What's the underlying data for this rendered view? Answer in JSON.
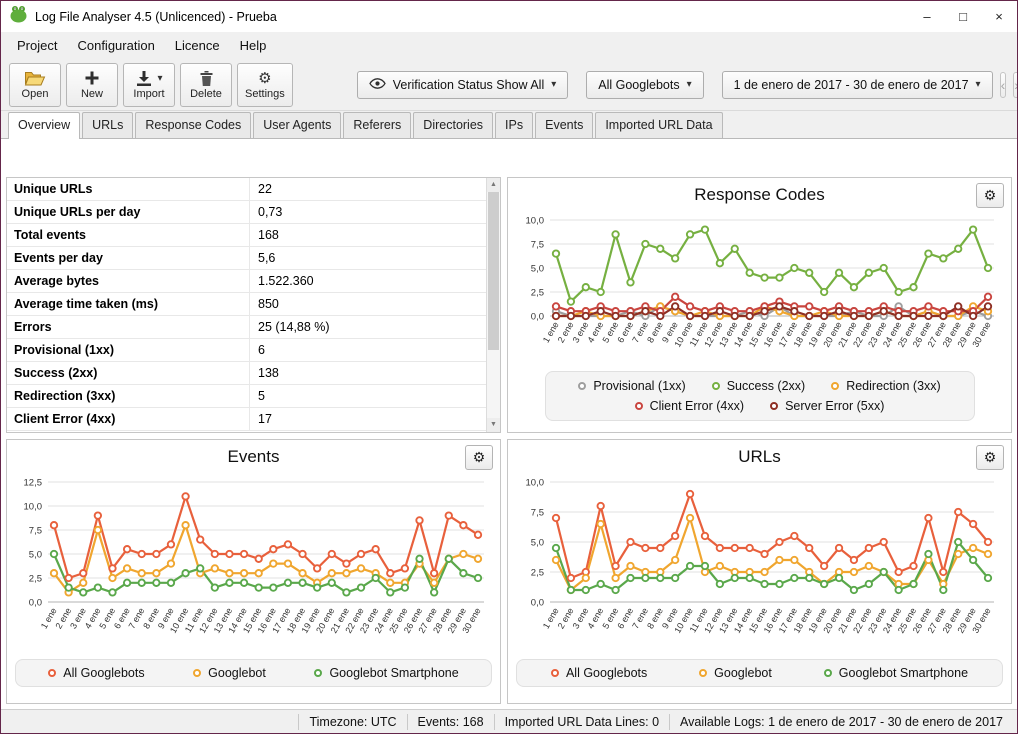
{
  "window": {
    "title": "Log File Analyser 4.5 (Unlicenced) - Prueba",
    "controls": {
      "minimize": "–",
      "maximize": "□",
      "close": "×"
    }
  },
  "icons": {
    "gear": "⚙",
    "caret_down": "▾",
    "prev": "‹",
    "next": "›",
    "scroll_up": "▲",
    "scroll_down": "▼"
  },
  "menu": {
    "items": [
      "Project",
      "Configuration",
      "Licence",
      "Help"
    ]
  },
  "toolbar": {
    "buttons": [
      {
        "label": "Open",
        "icon": "open-folder-icon"
      },
      {
        "label": "New",
        "icon": "new-plus-icon"
      },
      {
        "label": "Import",
        "icon": "import-icon",
        "has_caret": true
      },
      {
        "label": "Delete",
        "icon": "delete-trash-icon"
      },
      {
        "label": "Settings",
        "icon": "settings-gear-icon"
      }
    ],
    "verification_dropdown": {
      "label": "Verification Status Show All"
    },
    "bots_dropdown": {
      "label": "All Googlebots"
    },
    "date_dropdown": {
      "label": "1 de enero de 2017 - 30 de enero de 2017"
    }
  },
  "tabs": {
    "items": [
      "Overview",
      "URLs",
      "Response Codes",
      "User Agents",
      "Referers",
      "Directories",
      "IPs",
      "Events",
      "Imported URL Data"
    ],
    "selected": "Overview"
  },
  "stats_table": {
    "rows": [
      [
        "Unique URLs",
        "22"
      ],
      [
        "Unique URLs per day",
        "0,73"
      ],
      [
        "Total events",
        "168"
      ],
      [
        "Events per day",
        "5,6"
      ],
      [
        "Average bytes",
        "1.522.360"
      ],
      [
        "Average time taken (ms)",
        "850"
      ],
      [
        "Errors",
        "25 (14,88 %)"
      ],
      [
        "Provisional (1xx)",
        "6"
      ],
      [
        "Success (2xx)",
        "138"
      ],
      [
        "Redirection (3xx)",
        "5"
      ],
      [
        "Client Error (4xx)",
        "17"
      ]
    ]
  },
  "status_bar": {
    "items": [
      "Timezone: UTC",
      "Events: 168",
      "Imported URL Data Lines: 0",
      "Available Logs: 1 de enero de 2017 - 30 de enero de 2017"
    ]
  },
  "chart_data": [
    {
      "type": "line",
      "name": "response-codes",
      "title": "Response Codes",
      "ylim": [
        0,
        10
      ],
      "yticks": [
        0,
        2.5,
        5,
        7.5,
        10
      ],
      "categories": [
        "1 ene",
        "2 ene",
        "3 ene",
        "4 ene",
        "5 ene",
        "6 ene",
        "7 ene",
        "8 ene",
        "9 ene",
        "10 ene",
        "11 ene",
        "12 ene",
        "13 ene",
        "14 ene",
        "15 ene",
        "16 ene",
        "17 ene",
        "18 ene",
        "19 ene",
        "20 ene",
        "21 ene",
        "22 ene",
        "23 ene",
        "24 ene",
        "25 ene",
        "26 ene",
        "27 ene",
        "28 ene",
        "29 ene",
        "30 ene"
      ],
      "series": [
        {
          "name": "Provisional (1xx)",
          "color": "#9e9e9e",
          "values": [
            0.5,
            0,
            0,
            0,
            0,
            0.5,
            0,
            1,
            0.5,
            0,
            0,
            0,
            0,
            0.5,
            0,
            1,
            0,
            0,
            0,
            0,
            0.5,
            0,
            0,
            1,
            0,
            0.5,
            0,
            0,
            0.5,
            0
          ]
        },
        {
          "name": "Success (2xx)",
          "color": "#76b041",
          "values": [
            6.5,
            1.5,
            3,
            2.5,
            8.5,
            3.5,
            7.5,
            7,
            6,
            8.5,
            9,
            5.5,
            7,
            4.5,
            4,
            4,
            5,
            4.5,
            2.5,
            4.5,
            3,
            4.5,
            5,
            2.5,
            3,
            6.5,
            6,
            7,
            9,
            5
          ]
        },
        {
          "name": "Redirection (3xx)",
          "color": "#f0a62f",
          "values": [
            0,
            0,
            0.5,
            0,
            0,
            0,
            0.5,
            1,
            0.5,
            0,
            0.5,
            0,
            0,
            0,
            1,
            0.5,
            0,
            0,
            0.5,
            0,
            0,
            0,
            0.5,
            0,
            0,
            0.5,
            0,
            0,
            1,
            0.5
          ]
        },
        {
          "name": "Client Error (4xx)",
          "color": "#c9453f",
          "values": [
            1,
            0.5,
            0.5,
            1,
            0.5,
            0.5,
            1,
            0.5,
            2,
            1,
            0.5,
            1,
            0.5,
            0.5,
            1,
            1.5,
            1,
            1,
            0.5,
            1,
            0.5,
            0.5,
            1,
            0.5,
            0.5,
            1,
            0.5,
            0.5,
            0.5,
            2
          ]
        },
        {
          "name": "Server Error (5xx)",
          "color": "#8e2f24",
          "values": [
            0,
            0,
            0,
            0.5,
            0,
            0,
            0.5,
            0,
            1,
            0,
            0,
            0.5,
            0,
            0,
            0.5,
            1,
            0.5,
            0,
            0,
            0.5,
            0,
            0,
            0.5,
            0,
            0,
            0,
            0,
            1,
            0,
            1
          ]
        }
      ]
    },
    {
      "type": "line",
      "name": "events",
      "title": "Events",
      "ylim": [
        0,
        12.5
      ],
      "yticks": [
        0,
        2.5,
        5,
        7.5,
        10,
        12.5
      ],
      "categories": [
        "1 ene",
        "2 ene",
        "3 ene",
        "4 ene",
        "5 ene",
        "6 ene",
        "7 ene",
        "8 ene",
        "9 ene",
        "10 ene",
        "11 ene",
        "12 ene",
        "13 ene",
        "14 ene",
        "15 ene",
        "16 ene",
        "17 ene",
        "18 ene",
        "19 ene",
        "20 ene",
        "21 ene",
        "22 ene",
        "23 ene",
        "24 ene",
        "25 ene",
        "26 ene",
        "27 ene",
        "28 ene",
        "29 ene",
        "30 ene"
      ],
      "series": [
        {
          "name": "All Googlebots",
          "color": "#e8603c",
          "values": [
            8,
            2.5,
            3,
            9,
            3.5,
            5.5,
            5,
            5,
            6,
            11,
            6.5,
            5,
            5,
            5,
            4.5,
            5.5,
            6,
            5,
            3.5,
            5,
            4,
            5,
            5.5,
            3,
            3.5,
            8.5,
            3,
            9,
            8,
            7
          ]
        },
        {
          "name": "Googlebot",
          "color": "#f0a62f",
          "values": [
            3,
            1,
            2,
            7.5,
            2.5,
            3.5,
            3,
            3,
            4,
            8,
            3,
            3.5,
            3,
            3,
            3,
            4,
            4,
            3,
            2,
            3,
            3,
            3.5,
            3,
            2,
            2,
            4,
            2,
            4.5,
            5,
            4.5
          ]
        },
        {
          "name": "Googlebot Smartphone",
          "color": "#5aa84b",
          "values": [
            5,
            1.5,
            1,
            1.5,
            1,
            2,
            2,
            2,
            2,
            3,
            3.5,
            1.5,
            2,
            2,
            1.5,
            1.5,
            2,
            2,
            1.5,
            2,
            1,
            1.5,
            2.5,
            1,
            1.5,
            4.5,
            1,
            4.5,
            3,
            2.5
          ]
        }
      ]
    },
    {
      "type": "line",
      "name": "urls",
      "title": "URLs",
      "ylim": [
        0,
        10
      ],
      "yticks": [
        0,
        2.5,
        5,
        7.5,
        10
      ],
      "categories": [
        "1 ene",
        "2 ene",
        "3 ene",
        "4 ene",
        "5 ene",
        "6 ene",
        "7 ene",
        "8 ene",
        "9 ene",
        "10 ene",
        "11 ene",
        "12 ene",
        "13 ene",
        "14 ene",
        "15 ene",
        "16 ene",
        "17 ene",
        "18 ene",
        "19 ene",
        "20 ene",
        "21 ene",
        "22 ene",
        "23 ene",
        "24 ene",
        "25 ene",
        "26 ene",
        "27 ene",
        "28 ene",
        "29 ene",
        "30 ene"
      ],
      "series": [
        {
          "name": "All Googlebots",
          "color": "#e8603c",
          "values": [
            7,
            2,
            2.5,
            8,
            3,
            5,
            4.5,
            4.5,
            5.5,
            9,
            5.5,
            4.5,
            4.5,
            4.5,
            4,
            5,
            5.5,
            4.5,
            3,
            4.5,
            3.5,
            4.5,
            5,
            2.5,
            3,
            7,
            2.5,
            7.5,
            6.5,
            5
          ]
        },
        {
          "name": "Googlebot",
          "color": "#f0a62f",
          "values": [
            3.5,
            1,
            2,
            6.5,
            2,
            3,
            2.5,
            2.5,
            3.5,
            7,
            2.5,
            3,
            2.5,
            2.5,
            2.5,
            3.5,
            3.5,
            2.5,
            1.5,
            2.5,
            2.5,
            3,
            2.5,
            1.5,
            1.5,
            3.5,
            1.5,
            4,
            4.5,
            4
          ]
        },
        {
          "name": "Googlebot Smartphone",
          "color": "#5aa84b",
          "values": [
            4.5,
            1,
            1,
            1.5,
            1,
            2,
            2,
            2,
            2,
            3,
            3,
            1.5,
            2,
            2,
            1.5,
            1.5,
            2,
            2,
            1.5,
            2,
            1,
            1.5,
            2.5,
            1,
            1.5,
            4,
            1,
            5,
            3.5,
            2
          ]
        }
      ]
    }
  ]
}
